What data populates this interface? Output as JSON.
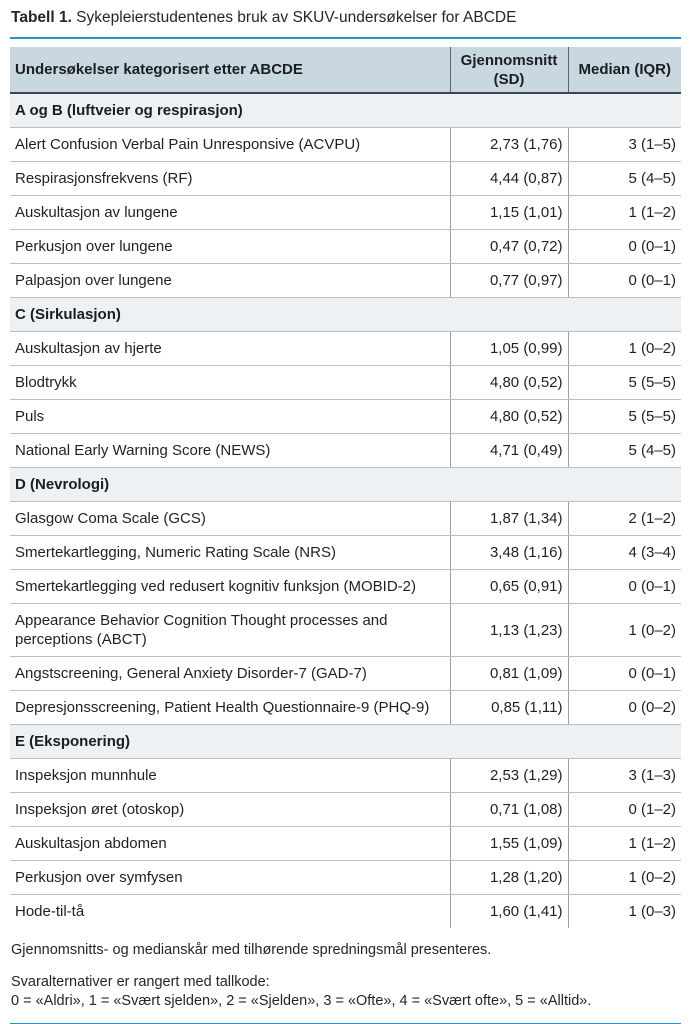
{
  "title": {
    "label": "Tabell 1.",
    "caption": " Sykepleierstudentenes bruk av SKUV-undersøkelser for ABCDE"
  },
  "table": {
    "columns": [
      "Undersøkelser kategorisert etter ABCDE",
      "Gjennomsnitt (SD)",
      "Median (IQR)"
    ],
    "sections": [
      {
        "header": "A og B (luftveier og respirasjon)",
        "rows": [
          {
            "name": "Alert Confusion Verbal Pain Unresponsive (ACVPU)",
            "mean_sd": "2,73 (1,76)",
            "median_iqr": "3 (1–5)"
          },
          {
            "name": "Respirasjonsfrekvens (RF)",
            "mean_sd": "4,44 (0,87)",
            "median_iqr": "5 (4–5)"
          },
          {
            "name": "Auskultasjon av lungene",
            "mean_sd": "1,15 (1,01)",
            "median_iqr": "1 (1–2)"
          },
          {
            "name": "Perkusjon over lungene",
            "mean_sd": "0,47 (0,72)",
            "median_iqr": "0 (0–1)"
          },
          {
            "name": "Palpasjon over lungene",
            "mean_sd": "0,77 (0,97)",
            "median_iqr": "0 (0–1)"
          }
        ]
      },
      {
        "header": "C (Sirkulasjon)",
        "rows": [
          {
            "name": "Auskultasjon av hjerte",
            "mean_sd": "1,05 (0,99)",
            "median_iqr": "1 (0–2)"
          },
          {
            "name": "Blodtrykk",
            "mean_sd": "4,80 (0,52)",
            "median_iqr": "5 (5–5)"
          },
          {
            "name": "Puls",
            "mean_sd": "4,80 (0,52)",
            "median_iqr": "5 (5–5)"
          },
          {
            "name": "National Early Warning Score (NEWS)",
            "mean_sd": "4,71 (0,49)",
            "median_iqr": "5 (4–5)"
          }
        ]
      },
      {
        "header": "D (Nevrologi)",
        "rows": [
          {
            "name": "Glasgow Coma Scale (GCS)",
            "mean_sd": "1,87 (1,34)",
            "median_iqr": "2 (1–2)"
          },
          {
            "name": "Smertekartlegging, Numeric Rating Scale (NRS)",
            "mean_sd": "3,48 (1,16)",
            "median_iqr": "4 (3–4)"
          },
          {
            "name": "Smertekartlegging ved redusert kognitiv funksjon (MOBID-2)",
            "mean_sd": "0,65 (0,91)",
            "median_iqr": "0 (0–1)"
          },
          {
            "name": "Appearance Behavior Cognition Thought processes and perceptions (ABCT)",
            "mean_sd": "1,13 (1,23)",
            "median_iqr": "1 (0–2)"
          },
          {
            "name": "Angstscreening, General Anxiety Disorder-7 (GAD-7)",
            "mean_sd": "0,81 (1,09)",
            "median_iqr": "0 (0–1)"
          },
          {
            "name": "Depresjonsscreening, Patient Health Questionnaire-9 (PHQ-9)",
            "mean_sd": "0,85 (1,11)",
            "median_iqr": "0 (0–2)"
          }
        ]
      },
      {
        "header": "E (Eksponering)",
        "rows": [
          {
            "name": "Inspeksjon munnhule",
            "mean_sd": "2,53 (1,29)",
            "median_iqr": "3 (1–3)"
          },
          {
            "name": "Inspeksjon øret (otoskop)",
            "mean_sd": "0,71 (1,08)",
            "median_iqr": "0 (1–2)"
          },
          {
            "name": "Auskultasjon abdomen",
            "mean_sd": "1,55 (1,09)",
            "median_iqr": "1 (1–2)"
          },
          {
            "name": "Perkusjon over symfysen",
            "mean_sd": "1,28 (1,20)",
            "median_iqr": "1 (0–2)"
          },
          {
            "name": "Hode-til-tå",
            "mean_sd": "1,60 (1,41)",
            "median_iqr": "1 (0–3)"
          }
        ]
      }
    ]
  },
  "footnotes": {
    "line1": "Gjennomsnitts- og medianskår med tilhørende spredningsmål presenteres.",
    "line2": "Svaralternativer er rangert med tallkode:",
    "line3": "0 = «Aldri», 1 = «Svært sjelden», 2 = «Sjelden», 3 = «Ofte», 4 = «Svært ofte», 5 = «Alltid»."
  },
  "colors": {
    "accent_blue": "#2397cb",
    "header_bg": "#c9d7e0",
    "section_bg": "#eef1f4",
    "text": "#1e2124"
  }
}
